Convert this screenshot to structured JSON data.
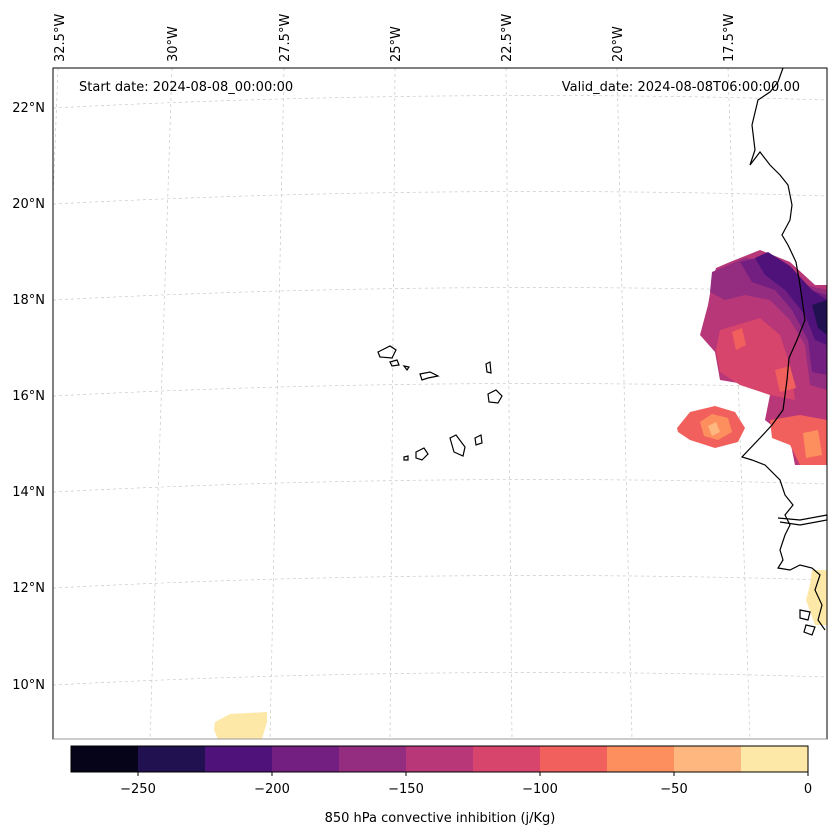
{
  "annotations": {
    "start_date": "Start date: 2024-08-08_00:00:00",
    "valid_date": "Valid_date: 2024-08-08T06:00:00.00"
  },
  "lat_ticks": [
    "22°N",
    "20°N",
    "18°N",
    "16°N",
    "14°N",
    "12°N",
    "10°N"
  ],
  "lon_ticks": [
    "32.5°W",
    "30°W",
    "27.5°W",
    "25°W",
    "22.5°W",
    "20°W",
    "17.5°W"
  ],
  "colorbar": {
    "label": "850 hPa convective inhibition (j/Kg)",
    "ticks": [
      "−250",
      "−200",
      "−150",
      "−100",
      "−50",
      "0"
    ],
    "levels": [
      -275,
      -250,
      -225,
      -200,
      -175,
      -150,
      -125,
      -100,
      -75,
      -50,
      -25,
      0
    ],
    "colors": [
      "#050418",
      "#221150",
      "#4f127b",
      "#721f81",
      "#942c80",
      "#b73779",
      "#d8456c",
      "#f1605d",
      "#fd8f5f",
      "#feb77e",
      "#fde8a7"
    ]
  },
  "chart_data": {
    "type": "heatmap",
    "title": "",
    "colorbar_label": "850 hPa convective inhibition (j/Kg)",
    "value_range": [
      -275,
      0
    ],
    "lon_range": [
      -32.6,
      -14.2
    ],
    "lat_range": [
      8.9,
      22.8
    ],
    "grid": true
  }
}
